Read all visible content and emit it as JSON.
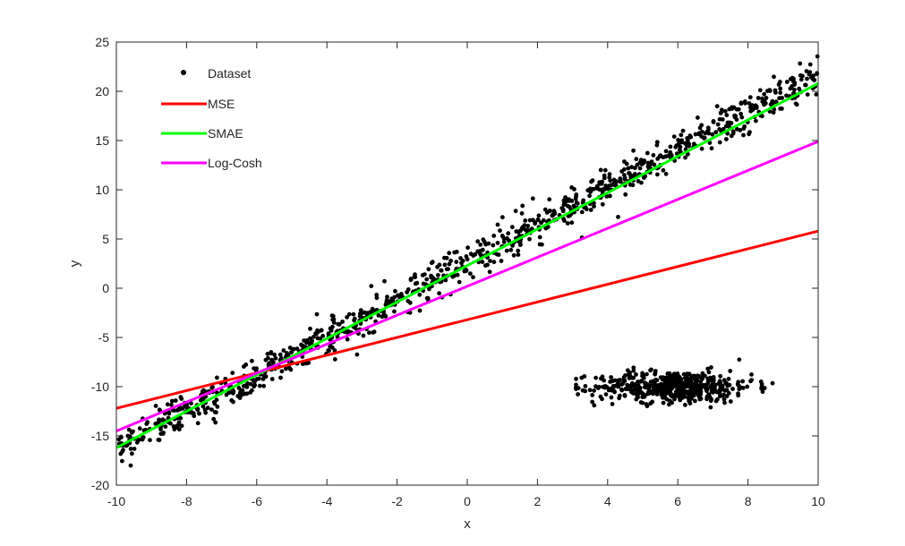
{
  "chart_data": {
    "type": "scatter",
    "title": "",
    "xlabel": "x",
    "ylabel": "y",
    "xlim": [
      -10,
      10
    ],
    "ylim": [
      -20,
      25
    ],
    "xticks": [
      -10,
      -8,
      -6,
      -4,
      -2,
      0,
      2,
      4,
      6,
      8,
      10
    ],
    "yticks": [
      -20,
      -15,
      -10,
      -5,
      0,
      5,
      10,
      15,
      20,
      25
    ],
    "grid": false,
    "legend_position": "top-left",
    "scatter_series": {
      "name": "Dataset",
      "color": "#000000",
      "clusters": [
        {
          "kind": "linear",
          "n": 1000,
          "x_range": [
            -10,
            10
          ],
          "slope": 1.9,
          "intercept": 2.7,
          "noise_sd": 0.9
        },
        {
          "kind": "blob",
          "n": 500,
          "x_range": [
            3.1,
            8.7
          ],
          "y_center": -10,
          "y_sd": 0.8
        }
      ]
    },
    "series": [
      {
        "name": "MSE",
        "color": "#ff0000",
        "x": [
          -10,
          10
        ],
        "y": [
          -12.2,
          5.8
        ]
      },
      {
        "name": "SMAE",
        "color": "#00ff00",
        "x": [
          -10,
          10
        ],
        "y": [
          -16.2,
          20.8
        ]
      },
      {
        "name": "Log-Cosh",
        "color": "#ff00ff",
        "x": [
          -10,
          10
        ],
        "y": [
          -14.5,
          14.9
        ]
      }
    ]
  }
}
